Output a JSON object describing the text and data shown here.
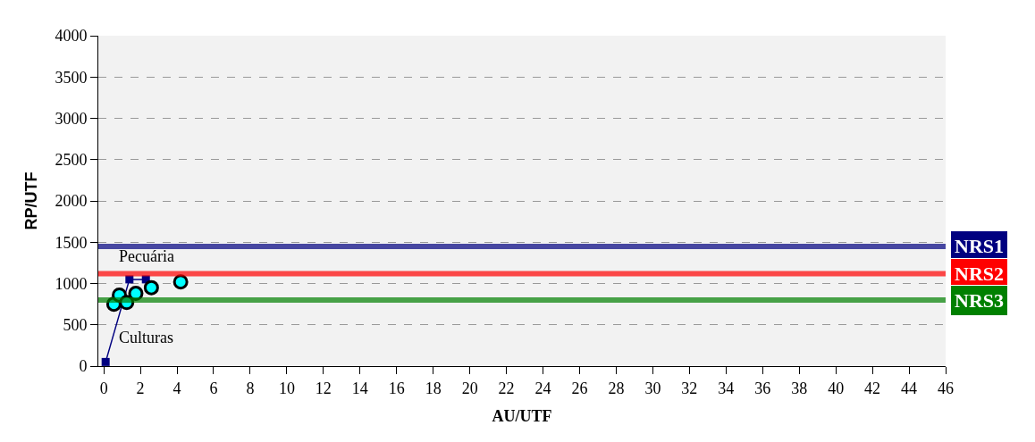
{
  "chart_data": {
    "type": "scatter",
    "xlabel": "AU/UTF",
    "ylabel": "RP/UTF",
    "xlim": [
      -0.3,
      46
    ],
    "xticks": [
      0,
      2,
      4,
      6,
      8,
      10,
      12,
      14,
      16,
      18,
      20,
      22,
      24,
      26,
      28,
      30,
      32,
      34,
      36,
      38,
      40,
      42,
      44,
      46
    ],
    "ylim": [
      0,
      4000
    ],
    "yticks": [
      0,
      500,
      1000,
      1500,
      2000,
      2500,
      3000,
      3500,
      4000
    ],
    "grid": "y",
    "legend": false,
    "series": [
      {
        "type": "line",
        "marker": "square",
        "color": "#000080",
        "x": [
          0.1,
          1.4,
          2.3
        ],
        "values": [
          50,
          1050,
          1050
        ]
      },
      {
        "marker": "circle",
        "color": "#00ffff",
        "x": [
          0.55,
          0.85,
          1.25,
          1.75,
          2.6,
          4.2
        ],
        "values": [
          750,
          860,
          770,
          880,
          950,
          1020
        ]
      }
    ],
    "ref_lines": [
      {
        "axis": "y",
        "value": 1450,
        "label": "NRS1",
        "color": "#000080"
      },
      {
        "axis": "y",
        "value": 1120,
        "label": "NRS2",
        "color": "#ff0000"
      },
      {
        "axis": "y",
        "value": 800,
        "label": "NRS3",
        "color": "#008000"
      }
    ],
    "annotations": [
      "Pecuária",
      "Culturas"
    ]
  }
}
